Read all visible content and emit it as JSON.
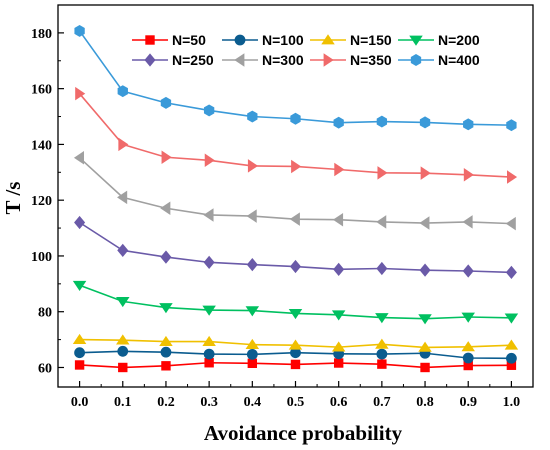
{
  "chart_data": {
    "type": "line",
    "xlabel": "Avoidance probability",
    "ylabel": "T /s",
    "xlim": [
      -0.05,
      1.05
    ],
    "ylim": [
      53,
      190
    ],
    "x": [
      0.0,
      0.1,
      0.2,
      0.3,
      0.4,
      0.5,
      0.6,
      0.7,
      0.8,
      0.9,
      1.0
    ],
    "x_ticks": [
      "0.0",
      "0.1",
      "0.2",
      "0.3",
      "0.4",
      "0.5",
      "0.6",
      "0.7",
      "0.8",
      "0.9",
      "1.0"
    ],
    "y_ticks": [
      60,
      80,
      100,
      120,
      140,
      160,
      180
    ],
    "grid": false,
    "legend_position": "top-right",
    "series": [
      {
        "name": "N=50",
        "color": "#ff0000",
        "marker": "square",
        "values": [
          60.9,
          60.0,
          60.6,
          61.7,
          61.5,
          61.1,
          61.6,
          61.2,
          60.0,
          60.7,
          60.8
        ]
      },
      {
        "name": "N=100",
        "color": "#0b5c8f",
        "marker": "circle",
        "values": [
          65.3,
          65.8,
          65.5,
          64.8,
          64.7,
          65.3,
          64.9,
          64.8,
          65.1,
          63.4,
          63.3
        ]
      },
      {
        "name": "N=150",
        "color": "#f0c000",
        "marker": "triangle-up",
        "values": [
          70.0,
          69.8,
          69.3,
          69.3,
          68.2,
          68.0,
          67.3,
          68.3,
          67.2,
          67.4,
          68.0
        ]
      },
      {
        "name": "N=200",
        "color": "#00c060",
        "marker": "triangle-down",
        "values": [
          89.5,
          83.7,
          81.5,
          80.6,
          80.4,
          79.4,
          78.9,
          77.9,
          77.5,
          78.1,
          77.8
        ]
      },
      {
        "name": "N=250",
        "color": "#6a5aa8",
        "marker": "diamond",
        "values": [
          112.0,
          102.0,
          99.6,
          97.7,
          96.9,
          96.2,
          95.2,
          95.5,
          94.9,
          94.6,
          94.1
        ]
      },
      {
        "name": "N=300",
        "color": "#a0a0a0",
        "marker": "triangle-left",
        "values": [
          135.2,
          121.0,
          117.1,
          114.7,
          114.3,
          113.2,
          113.0,
          112.2,
          111.8,
          112.2,
          111.6
        ]
      },
      {
        "name": "N=350",
        "color": "#f06a6a",
        "marker": "triangle-right",
        "values": [
          158.2,
          140.0,
          135.4,
          134.3,
          132.3,
          132.1,
          131.0,
          129.8,
          129.7,
          129.1,
          128.3
        ]
      },
      {
        "name": "N=400",
        "color": "#3a9ad9",
        "marker": "hexagon",
        "values": [
          180.7,
          159.1,
          154.9,
          152.2,
          150.0,
          149.2,
          147.8,
          148.2,
          147.9,
          147.2,
          146.9
        ]
      }
    ]
  }
}
